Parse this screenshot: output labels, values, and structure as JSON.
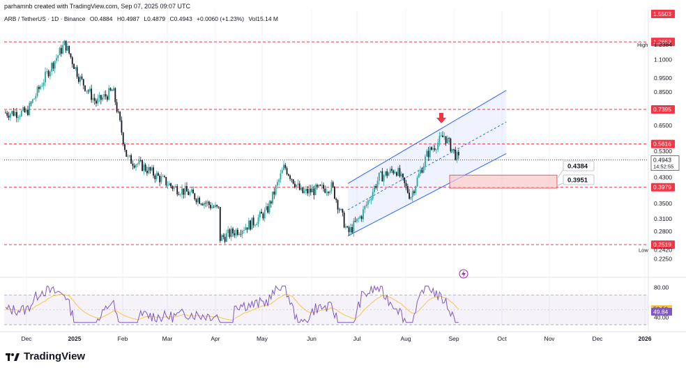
{
  "header": {
    "created_by": "parhamnb created with TradingView.com, Sep 07, 2025 09:07 UTC"
  },
  "symbol_bar": {
    "pair": "ARB / TetherUS · 1D · Binance",
    "open": "O0.4884",
    "high": "H0.4987",
    "low": "L0.4879",
    "close": "C0.4943",
    "change": "+0.0060 (+1.23%)",
    "volume": "Vol15.14 M"
  },
  "brand": {
    "name": "TradingView"
  },
  "colors": {
    "up": "#26a69a",
    "down": "#131722",
    "level": "#f23645",
    "channel": "#2962ff",
    "rsi": "#7e57c2",
    "rsi_ma": "#f5c749",
    "zone": "#f7c8c8"
  },
  "chart_data": [
    {
      "type": "candlestick",
      "pair": "ARB / TetherUS",
      "interval": "1D",
      "y_scale": "log",
      "ylim": [
        0.21,
        1.58
      ],
      "x_ticks": [
        "Dec",
        "2025",
        "Feb",
        "Mar",
        "Apr",
        "May",
        "Jun",
        "Jul",
        "Aug",
        "Sep",
        "Oct",
        "Nov",
        "Dec",
        "2026"
      ],
      "y_ticks": [
        "1.1000",
        "0.9500",
        "0.8500",
        "0.6500",
        "0.5300",
        "0.4300",
        "0.3500",
        "0.3100",
        "0.2800",
        "0.2250"
      ],
      "price_path": [
        {
          "date": "Dec 2024",
          "price": 0.72
        },
        {
          "date": "mid Dec 2024",
          "price": 1.0
        },
        {
          "date": "late Dec 2024",
          "price": 1.25
        },
        {
          "date": "early Jan 2025",
          "price": 0.95
        },
        {
          "date": "mid Jan 2025",
          "price": 0.78
        },
        {
          "date": "late Jan 2025",
          "price": 0.86
        },
        {
          "date": "early Feb 2025",
          "price": 0.5
        },
        {
          "date": "mid Feb 2025",
          "price": 0.47
        },
        {
          "date": "early Mar 2025",
          "price": 0.4
        },
        {
          "date": "mid Mar 2025",
          "price": 0.38
        },
        {
          "date": "early Apr 2025",
          "price": 0.33
        },
        {
          "date": "Apr 2025",
          "price": 0.26
        },
        {
          "date": "late Apr 2025",
          "price": 0.3
        },
        {
          "date": "early May 2025",
          "price": 0.33
        },
        {
          "date": "mid May 2025",
          "price": 0.47
        },
        {
          "date": "late May 2025",
          "price": 0.38
        },
        {
          "date": "mid Jun 2025",
          "price": 0.4
        },
        {
          "date": "late Jun 2025",
          "price": 0.275
        },
        {
          "date": "early Jul 2025",
          "price": 0.32
        },
        {
          "date": "mid Jul 2025",
          "price": 0.43
        },
        {
          "date": "late Jul 2025",
          "price": 0.46
        },
        {
          "date": "early Aug 2025",
          "price": 0.37
        },
        {
          "date": "mid Aug 2025",
          "price": 0.52
        },
        {
          "date": "late Aug 2025",
          "price": 0.6
        },
        {
          "date": "early Sep 2025",
          "price": 0.4943
        }
      ],
      "levels": [
        {
          "value": 1.2653,
          "label": "1.2653"
        },
        {
          "value": 0.7395,
          "label": "0.7395"
        },
        {
          "value": 0.5616,
          "label": "0.5616"
        },
        {
          "value": 0.3979,
          "label": "0.3979"
        },
        {
          "value": 0.2519,
          "label": "0.2519"
        }
      ],
      "top_label": "1.5503",
      "high": {
        "label": "High",
        "value": "1.2384"
      },
      "low": {
        "label": "Low",
        "value": "0.2420"
      },
      "last_price": {
        "value": 0.4943,
        "label": "0.4943",
        "countdown": "14:52:55"
      },
      "callouts": [
        "0.4384",
        "0.3951"
      ],
      "zone": {
        "top": 0.4384,
        "bottom": 0.3951
      },
      "channel": {
        "lower": [
          {
            "date": "late Jun 2025",
            "price": 0.27
          },
          {
            "date": "late Sep 2025",
            "price": 0.52
          }
        ],
        "upper": [
          {
            "date": "late Jun 2025",
            "price": 0.41
          },
          {
            "date": "late Sep 2025",
            "price": 0.86
          }
        ]
      }
    },
    {
      "type": "line",
      "name": "RSI",
      "ylim": [
        30,
        90
      ],
      "y_ticks": [
        "80.00",
        "40.00"
      ],
      "bands": [
        70,
        30
      ],
      "rsi_label": "49.84",
      "rsi_ma_label": "50.56"
    }
  ]
}
